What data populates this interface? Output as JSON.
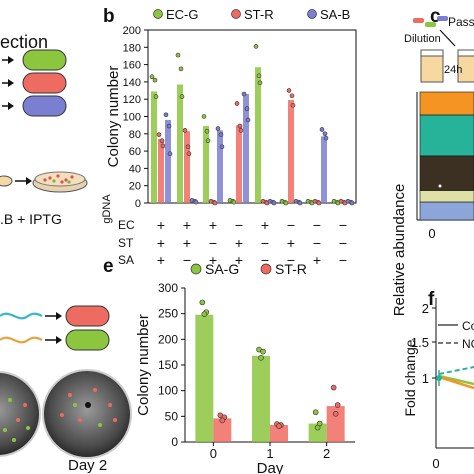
{
  "panels": {
    "b": "b",
    "c": "c",
    "e": "e",
    "f": "f"
  },
  "left_top": {
    "title_fragment": "ection",
    "plate_label": ".B + IPTG"
  },
  "left_bottom": {
    "day_label": "Day 2"
  },
  "panel_c": {
    "passage_label": "Passag",
    "dilution_label": "Dilution",
    "time_label": "24h",
    "ylabel": "Relative abundance",
    "tick0": "0",
    "colors": [
      "#f59422",
      "#27b39a",
      "#3b3021",
      "#dfe0a6",
      "#8da6d9"
    ]
  },
  "panel_f": {
    "ylabel": "Fold change",
    "xtick0": "0",
    "legend": [
      "Colo",
      "NGS"
    ],
    "yticks": [
      "1",
      "1.5",
      "2"
    ]
  },
  "chart_data": [
    {
      "type": "bar",
      "panel": "b",
      "ylabel": "Colony number",
      "xlabel": "",
      "ylim": [
        0,
        200
      ],
      "yticks": [
        0,
        20,
        40,
        60,
        80,
        100,
        120,
        140,
        160,
        180,
        200
      ],
      "legend": [
        "EC-G",
        "ST-R",
        "SA-B"
      ],
      "legend_placement": "top",
      "colors": {
        "EC-G": "#8cc63f",
        "ST-R": "#ee6b61",
        "SA-B": "#7b7fd1"
      },
      "grid": false,
      "row_labels": [
        "gDNA",
        "EC",
        "ST",
        "SA"
      ],
      "condition_signs": [
        [
          "+",
          "+",
          "+"
        ],
        [
          "+",
          "+",
          "−"
        ],
        [
          "+",
          "−",
          "+"
        ],
        [
          "−",
          "+",
          "+"
        ],
        [
          "+",
          "−",
          "−"
        ],
        [
          "−",
          "+",
          "−"
        ],
        [
          "−",
          "−",
          "+"
        ],
        [
          "−",
          "−",
          "−"
        ]
      ],
      "bars": [
        {
          "series": "EC-G",
          "group": 0,
          "value": 129,
          "points": [
            146,
            142,
            123
          ]
        },
        {
          "series": "ST-R",
          "group": 0,
          "value": 74,
          "points": [
            79,
            72,
            66
          ]
        },
        {
          "series": "SA-B",
          "group": 0,
          "value": 96,
          "points": [
            102,
            89,
            57
          ]
        },
        {
          "series": "EC-G",
          "group": 1,
          "value": 137,
          "points": [
            171,
            155,
            123
          ]
        },
        {
          "series": "ST-R",
          "group": 1,
          "value": 83,
          "points": [
            84,
            65,
            57
          ]
        },
        {
          "series": "SA-B",
          "group": 1,
          "value": 2,
          "points": [
            3,
            2,
            1
          ]
        },
        {
          "series": "EC-G",
          "group": 2,
          "value": 89,
          "points": [
            100,
            83,
            72
          ]
        },
        {
          "series": "ST-R",
          "group": 2,
          "value": 1,
          "points": [
            2,
            1,
            0
          ]
        },
        {
          "series": "SA-B",
          "group": 2,
          "value": 84,
          "points": [
            86,
            79,
            65
          ]
        },
        {
          "series": "EC-G",
          "group": 3,
          "value": 2,
          "points": [
            3,
            2,
            1
          ]
        },
        {
          "series": "ST-R",
          "group": 3,
          "value": 90,
          "points": [
            115,
            89,
            84
          ]
        },
        {
          "series": "SA-B",
          "group": 3,
          "value": 126,
          "points": [
            126,
            109,
            96
          ]
        },
        {
          "series": "EC-G",
          "group": 4,
          "value": 157,
          "points": [
            181,
            147,
            139
          ]
        },
        {
          "series": "ST-R",
          "group": 4,
          "value": 1,
          "points": [
            2,
            1,
            0
          ]
        },
        {
          "series": "SA-B",
          "group": 4,
          "value": 1,
          "points": [
            2,
            1,
            0
          ]
        },
        {
          "series": "EC-G",
          "group": 5,
          "value": 1,
          "points": [
            2,
            1,
            0
          ]
        },
        {
          "series": "ST-R",
          "group": 5,
          "value": 119,
          "points": [
            130,
            124,
            113
          ]
        },
        {
          "series": "SA-B",
          "group": 5,
          "value": 1,
          "points": [
            2,
            1,
            0
          ]
        },
        {
          "series": "EC-G",
          "group": 6,
          "value": 1,
          "points": [
            2,
            1,
            0
          ]
        },
        {
          "series": "ST-R",
          "group": 6,
          "value": 1,
          "points": [
            2,
            1,
            0
          ]
        },
        {
          "series": "SA-B",
          "group": 6,
          "value": 77,
          "points": [
            85,
            80,
            75
          ]
        },
        {
          "series": "EC-G",
          "group": 7,
          "value": 1,
          "points": [
            2,
            1,
            0
          ]
        },
        {
          "series": "ST-R",
          "group": 7,
          "value": 1,
          "points": [
            2,
            1,
            0
          ]
        },
        {
          "series": "SA-B",
          "group": 7,
          "value": 1,
          "points": [
            2,
            1,
            0
          ]
        }
      ]
    },
    {
      "type": "bar",
      "panel": "e",
      "xlabel": "Day",
      "ylabel": "Colony number",
      "ylim": [
        0,
        300
      ],
      "yticks": [
        0,
        50,
        100,
        150,
        200,
        250,
        300
      ],
      "categories": [
        "0",
        "1",
        "2"
      ],
      "legend": [
        "SA-G",
        "ST-R"
      ],
      "legend_placement": "top",
      "grid": false,
      "series": [
        {
          "name": "SA-G",
          "color": "#8cc63f",
          "values": [
            248,
            168,
            36
          ],
          "points": [
            [
              272,
              253,
              249
            ],
            [
              180,
              176,
              164
            ],
            [
              58,
              36,
              28
            ]
          ]
        },
        {
          "name": "ST-R",
          "color": "#ee6b61",
          "values": [
            46,
            33,
            70
          ],
          "points": [
            [
              52,
              48,
              42
            ],
            [
              35,
              33,
              31
            ],
            [
              106,
              72,
              55
            ]
          ]
        }
      ]
    }
  ]
}
